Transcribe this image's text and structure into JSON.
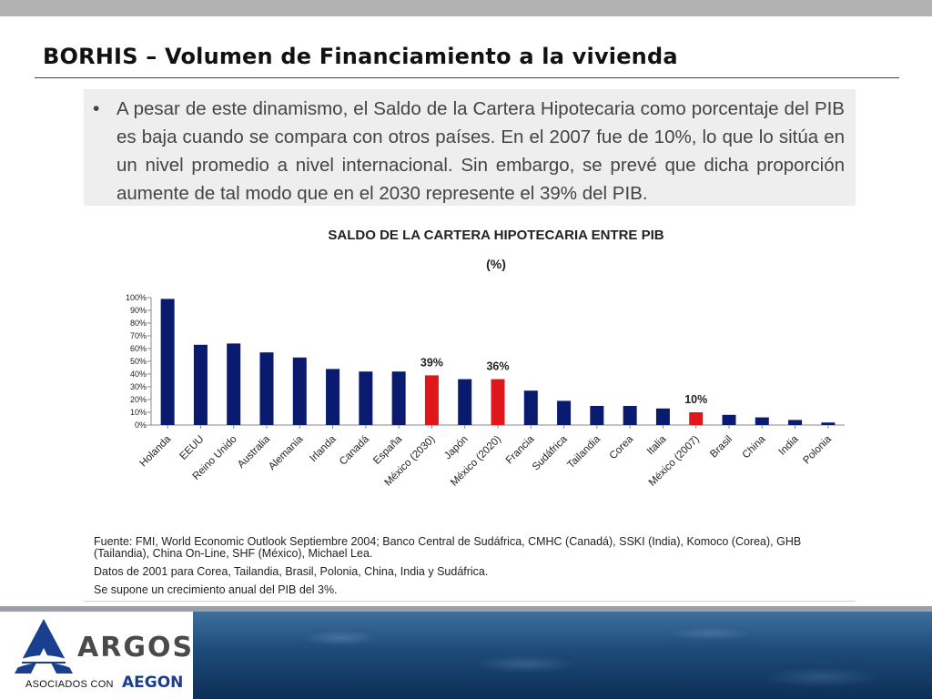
{
  "slide": {
    "title": "BORHIS – Volumen de Financiamiento a la vivienda",
    "bullet": "•",
    "bullet_text": "A pesar de este dinamismo, el Saldo de la Cartera Hipotecaria como porcentaje del PIB es baja cuando se compara con otros países. En el 2007 fue de 10%, lo que lo sitúa en un nivel promedio a nivel internacional. Sin embargo, se prevé que dicha proporción aumente de tal modo que en el 2030 represente el 39% del PIB."
  },
  "chart_data": {
    "type": "bar",
    "title": "SALDO DE LA CARTERA HIPOTECARIA ENTRE PIB",
    "unit": "(%)",
    "xlabel": "",
    "ylabel": "",
    "ylim": [
      0,
      100
    ],
    "yticks": [
      "0%",
      "10%",
      "20%",
      "30%",
      "40%",
      "50%",
      "60%",
      "70%",
      "80%",
      "90%",
      "100%"
    ],
    "grid": false,
    "categories": [
      "Holanda",
      "EEUU",
      "Reino Unido",
      "Australia",
      "Alemania",
      "Irlanda",
      "Canadá",
      "España",
      "México (2030)",
      "Japón",
      "México (2020)",
      "Francia",
      "Sudáfrica",
      "Tailandia",
      "Corea",
      "Italia",
      "México (2007)",
      "Brasil",
      "China",
      "India",
      "Polonia"
    ],
    "values": [
      99,
      63,
      64,
      57,
      53,
      44,
      42,
      42,
      39,
      36,
      36,
      27,
      19,
      15,
      15,
      13,
      10,
      8,
      6,
      4,
      2
    ],
    "highlight": [
      false,
      false,
      false,
      false,
      false,
      false,
      false,
      false,
      true,
      false,
      true,
      false,
      false,
      false,
      false,
      false,
      true,
      false,
      false,
      false,
      false
    ],
    "data_labels": [
      "",
      "",
      "",
      "",
      "",
      "",
      "",
      "",
      "39%",
      "",
      "36%",
      "",
      "",
      "",
      "",
      "",
      "10%",
      "",
      "",
      "",
      ""
    ],
    "colors": {
      "bar": "#0a1a6e",
      "highlight": "#e0161b"
    }
  },
  "notes": {
    "source": "Fuente: FMI, World Economic Outlook Septiembre 2004; Banco Central de Sudáfrica, CMHC (Canadá), SSKI (India), Komoco (Corea), GHB (Tailandia), China On-Line, SHF (México), Michael Lea.",
    "data_years": "Datos de 2001 para Corea, Tailandia, Brasil, Polonia, China, India y Sudáfrica.",
    "assumption": "Se supone un crecimiento anual del PIB del 3%."
  },
  "footer": {
    "brand": "ARGOS",
    "sub": "ASOCIADOS CON",
    "partner": "AEGON",
    "colors": {
      "brand_blue": "#1b3f8f",
      "brand_gray": "#4a4a4a"
    }
  }
}
